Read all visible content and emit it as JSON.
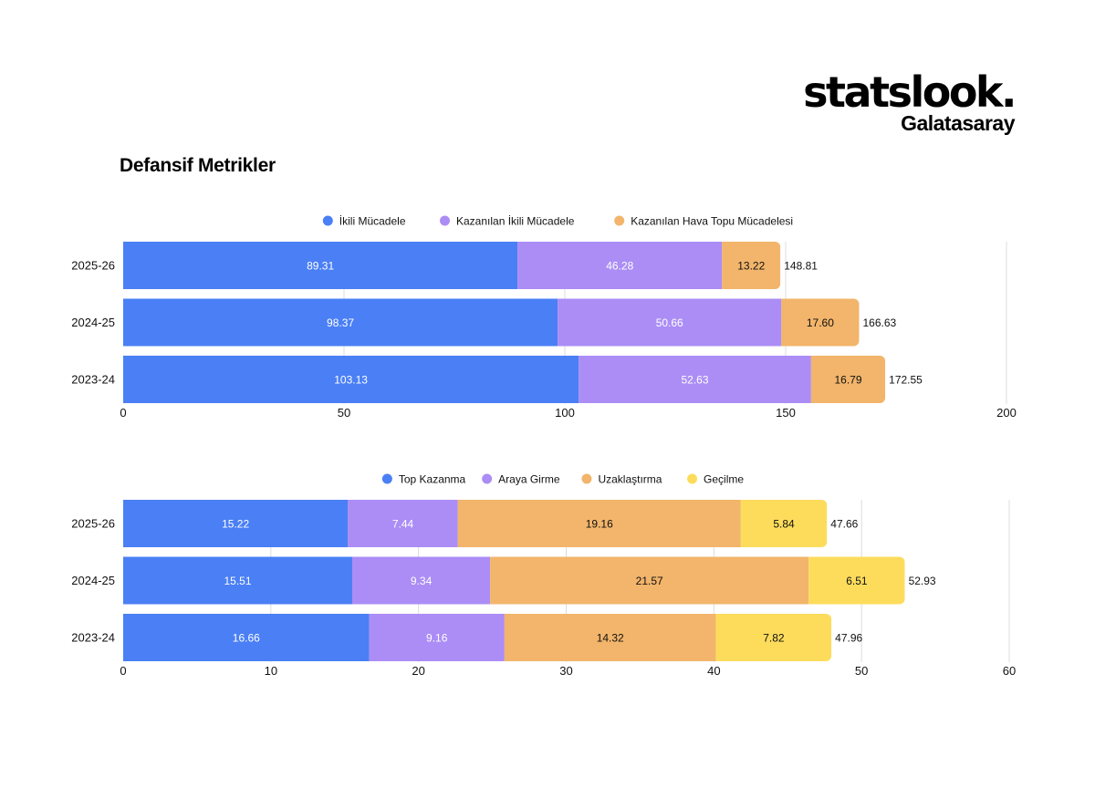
{
  "brand": {
    "logo": "statslook.",
    "team": "Galatasaray"
  },
  "page_title": "Defansif Metrikler",
  "chart_data": [
    {
      "type": "bar",
      "orientation": "horizontal",
      "stacked": true,
      "categories": [
        "2025-26",
        "2024-25",
        "2023-24"
      ],
      "series": [
        {
          "name": "İkili Mücadele",
          "values": [
            89.31,
            98.37,
            103.13
          ],
          "labels": [
            "89.31",
            "98.37",
            "103.13"
          ],
          "color": "#4a7ff5"
        },
        {
          "name": "Kazanılan İkili Mücadele",
          "values": [
            46.28,
            50.66,
            52.63
          ],
          "labels": [
            "46.28",
            "50.66",
            "52.63"
          ],
          "color": "#ab8df5"
        },
        {
          "name": "Kazanılan Hava Topu Mücadelesi",
          "values": [
            13.22,
            17.6,
            16.79
          ],
          "labels": [
            "13.22",
            "17.60",
            "16.79"
          ],
          "color": "#f2b56b"
        }
      ],
      "totals": [
        "148.81",
        "166.63",
        "172.55"
      ],
      "xlim": [
        0,
        200
      ],
      "xticks": [
        0,
        50,
        100,
        150,
        200
      ],
      "grid": true,
      "legend": "top-center"
    },
    {
      "type": "bar",
      "orientation": "horizontal",
      "stacked": true,
      "categories": [
        "2025-26",
        "2024-25",
        "2023-24"
      ],
      "series": [
        {
          "name": "Top Kazanma",
          "values": [
            15.22,
            15.51,
            16.66
          ],
          "labels": [
            "15.22",
            "15.51",
            "16.66"
          ],
          "color": "#4a7ff5"
        },
        {
          "name": "Araya Girme",
          "values": [
            7.44,
            9.34,
            9.16
          ],
          "labels": [
            "7.44",
            "9.34",
            "9.16"
          ],
          "color": "#ab8df5"
        },
        {
          "name": "Uzaklaştırma",
          "values": [
            19.16,
            21.57,
            14.32
          ],
          "labels": [
            "19.16",
            "21.57",
            "14.32"
          ],
          "color": "#f2b56b"
        },
        {
          "name": "Geçilme",
          "values": [
            5.84,
            6.51,
            7.82
          ],
          "labels": [
            "5.84",
            "6.51",
            "7.82"
          ],
          "color": "#fddc5c"
        }
      ],
      "totals": [
        "47.66",
        "52.93",
        "47.96"
      ],
      "xlim": [
        0,
        60
      ],
      "xticks": [
        0,
        10,
        20,
        30,
        40,
        50,
        60
      ],
      "grid": true,
      "legend": "top-center"
    }
  ]
}
